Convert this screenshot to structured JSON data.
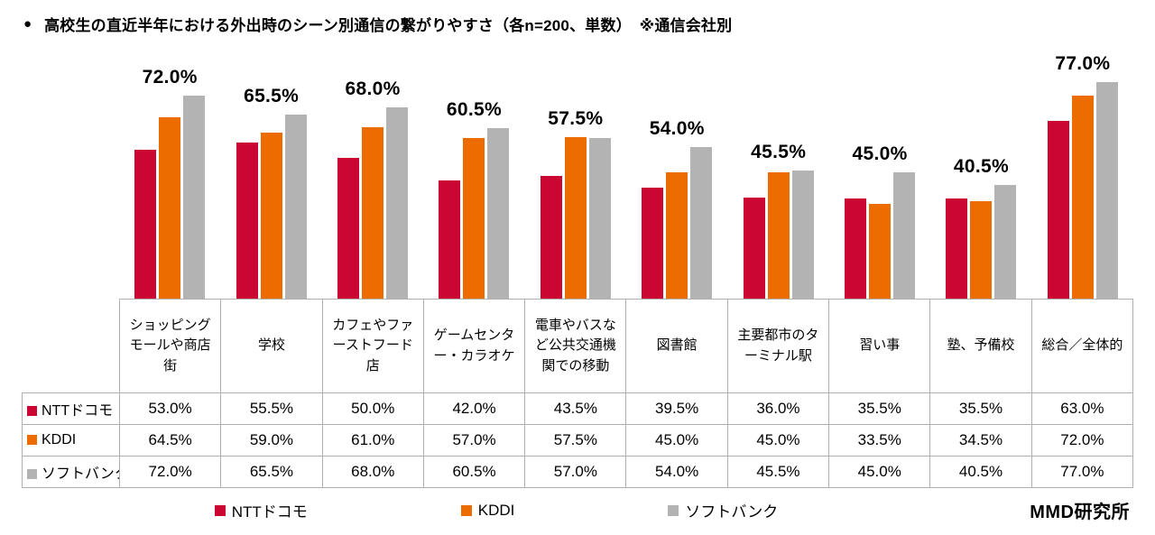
{
  "title": {
    "bullet": "●",
    "text": "高校生の直近半年における外出時のシーン別通信の繋がりやすさ（各n=200、単数）　※通信会社別"
  },
  "credit": "MMD研究所",
  "chart_data": {
    "type": "bar",
    "title": "高校生の直近半年における外出時のシーン別通信の繋がりやすさ（各n=200、単数）※通信会社別",
    "categories": [
      "ショッピングモールや商店街",
      "学校",
      "カフェやファーストフード店",
      "ゲームセンター・カラオケ",
      "電車やバスなど公共交通機関での移動",
      "図書館",
      "主要都市のターミナル駅",
      "習い事",
      "塾、予備校",
      "総合／全体的"
    ],
    "series": [
      {
        "key": "docomo",
        "name": "NTTドコモ",
        "color": "#CC0633",
        "values": [
          53.0,
          55.5,
          50.0,
          42.0,
          43.5,
          39.5,
          36.0,
          35.5,
          35.5,
          63.0
        ]
      },
      {
        "key": "kddi",
        "name": "KDDI",
        "color": "#ED6C00",
        "values": [
          64.5,
          59.0,
          61.0,
          57.0,
          57.5,
          45.0,
          45.0,
          33.5,
          34.5,
          72.0
        ]
      },
      {
        "key": "softbank",
        "name": "ソフトバンク",
        "color": "#B3B3B3",
        "values": [
          72.0,
          65.5,
          68.0,
          60.5,
          57.0,
          54.0,
          45.5,
          45.0,
          40.5,
          77.0
        ]
      }
    ],
    "annotations": [
      "72.0%",
      "65.5%",
      "68.0%",
      "60.5%",
      "57.5%",
      "54.0%",
      "45.5%",
      "45.0%",
      "40.5%",
      "77.0%"
    ],
    "ylim": [
      0,
      85
    ],
    "value_suffix": "%",
    "grid": false,
    "legend_position": "bottom"
  }
}
